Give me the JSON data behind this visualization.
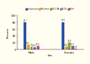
{
  "categories": [
    "Male",
    "Female"
  ],
  "series": [
    {
      "label": "Insulin alone",
      "values": [
        80.7,
        80.9
      ],
      "color": "#2952a3"
    },
    {
      "label": "Metformin",
      "values": [
        15.1,
        8.51
      ],
      "color": "#e8a020"
    },
    {
      "label": "GLP-1 RA",
      "values": [
        7.8,
        20.8
      ],
      "color": "#88aa44"
    },
    {
      "label": "SGLT2i",
      "values": [
        5.55,
        10.9
      ],
      "color": "#8060a0"
    },
    {
      "label": "Other*",
      "values": [
        10.8,
        3.17
      ],
      "color": "#cc44aa"
    }
  ],
  "ylabel": "Percent",
  "xlabel": "Sex",
  "ylim": [
    0,
    100
  ],
  "yticks": [
    0,
    20,
    40,
    60,
    80,
    100
  ],
  "background_color": "#fffef0",
  "bar_width": 0.1
}
